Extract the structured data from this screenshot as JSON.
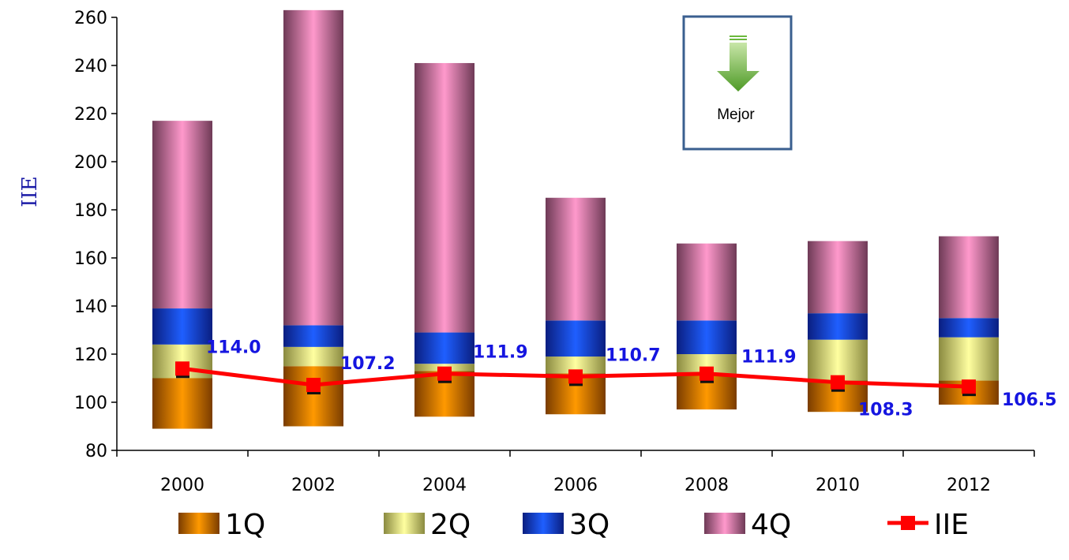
{
  "chart_data": {
    "type": "bar",
    "subtype": "floating-stacked-bar-with-line",
    "ylabel": "IIE",
    "ylim": [
      80,
      260
    ],
    "yticks": [
      80,
      100,
      120,
      140,
      160,
      180,
      200,
      220,
      240,
      260
    ],
    "categories": [
      "2000",
      "2002",
      "2004",
      "2006",
      "2008",
      "2010",
      "2012"
    ],
    "bar_series": [
      {
        "name": "1Q",
        "base": [
          89,
          90,
          94,
          95,
          97,
          96,
          99
        ],
        "top": [
          110,
          115,
          113,
          112,
          111,
          109,
          109
        ]
      },
      {
        "name": "2Q",
        "base": [
          110,
          115,
          113,
          112,
          111,
          109,
          109
        ],
        "top": [
          124,
          123,
          116,
          119,
          120,
          126,
          127
        ]
      },
      {
        "name": "3Q",
        "base": [
          124,
          123,
          116,
          119,
          120,
          126,
          127
        ],
        "top": [
          139,
          132,
          129,
          134,
          134,
          137,
          135
        ]
      },
      {
        "name": "4Q",
        "base": [
          139,
          132,
          129,
          134,
          134,
          137,
          135
        ],
        "top": [
          217,
          263,
          241,
          185,
          166,
          167,
          169
        ]
      }
    ],
    "line_series": {
      "name": "IIE",
      "values": [
        114.0,
        107.2,
        111.9,
        110.7,
        111.9,
        108.3,
        106.5
      ]
    },
    "data_labels": [
      "114.0",
      "107.2",
      "111.9",
      "110.7",
      "111.9",
      "108.3",
      "106.5"
    ],
    "grid": false,
    "legend_position": "bottom",
    "annotation": {
      "text": "Mejor",
      "icon": "arrow-down-icon"
    },
    "colors": {
      "1Q": "#ff9900",
      "2Q": "#ffffa0",
      "3Q": "#1f5fff",
      "4Q": "#ff99cc",
      "IIE": "#ff0000",
      "data_label": "#1515e0",
      "ylabel": "#1a1aa6",
      "annotation_border": "#3a5f8f",
      "arrow": "#6bb83c"
    }
  }
}
